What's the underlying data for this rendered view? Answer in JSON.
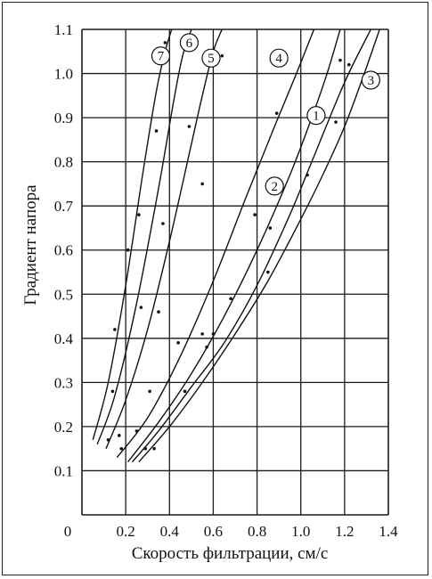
{
  "chart_data": {
    "type": "scatter",
    "xlabel": "Скорость фильтрации, см/с",
    "ylabel": "Градиент напора",
    "xlim": [
      0,
      1.4
    ],
    "ylim": [
      0,
      1.1
    ],
    "x_ticks": [
      "0",
      "0.2",
      "0.4",
      "0.6",
      "0.8",
      "1.0",
      "1.2",
      "1.4"
    ],
    "y_ticks": [
      "0.1",
      "0.2",
      "0.3",
      "0.4",
      "0.5",
      "0.6",
      "0.7",
      "0.8",
      "0.9",
      "1.0",
      "1.1"
    ],
    "grid": true,
    "curves": [
      {
        "name": "1",
        "x": [
          0.23,
          0.35,
          0.5,
          0.65,
          0.8,
          0.95,
          1.05,
          1.2,
          1.32
        ],
        "y": [
          0.12,
          0.19,
          0.29,
          0.39,
          0.52,
          0.68,
          0.8,
          0.98,
          1.1
        ]
      },
      {
        "name": "2",
        "x": [
          0.21,
          0.35,
          0.5,
          0.65,
          0.8,
          0.95,
          1.05,
          1.12,
          1.18
        ],
        "y": [
          0.12,
          0.21,
          0.32,
          0.45,
          0.6,
          0.77,
          0.9,
          1.0,
          1.1
        ]
      },
      {
        "name": "3",
        "x": [
          0.26,
          0.4,
          0.55,
          0.7,
          0.85,
          1.0,
          1.1,
          1.2,
          1.29,
          1.36
        ],
        "y": [
          0.12,
          0.2,
          0.3,
          0.41,
          0.53,
          0.67,
          0.77,
          0.88,
          1.0,
          1.1
        ]
      },
      {
        "name": "4",
        "x": [
          0.16,
          0.3,
          0.45,
          0.6,
          0.75,
          0.88,
          0.98,
          1.06
        ],
        "y": [
          0.13,
          0.22,
          0.36,
          0.53,
          0.72,
          0.88,
          1.0,
          1.1
        ]
      },
      {
        "name": "5",
        "x": [
          0.11,
          0.2,
          0.3,
          0.4,
          0.5,
          0.55,
          0.6,
          0.64
        ],
        "y": [
          0.15,
          0.26,
          0.42,
          0.62,
          0.84,
          0.95,
          1.05,
          1.1
        ]
      },
      {
        "name": "6",
        "x": [
          0.07,
          0.15,
          0.25,
          0.35,
          0.42,
          0.46,
          0.5
        ],
        "y": [
          0.16,
          0.27,
          0.48,
          0.74,
          0.94,
          1.04,
          1.1
        ]
      },
      {
        "name": "7",
        "x": [
          0.05,
          0.12,
          0.2,
          0.28,
          0.34,
          0.38,
          0.41
        ],
        "y": [
          0.17,
          0.3,
          0.52,
          0.78,
          0.96,
          1.05,
          1.1
        ]
      }
    ],
    "points": [
      {
        "x": 0.12,
        "y": 0.17
      },
      {
        "x": 0.14,
        "y": 0.28
      },
      {
        "x": 0.15,
        "y": 0.42
      },
      {
        "x": 0.17,
        "y": 0.18
      },
      {
        "x": 0.18,
        "y": 0.15
      },
      {
        "x": 0.21,
        "y": 0.6
      },
      {
        "x": 0.25,
        "y": 0.19
      },
      {
        "x": 0.26,
        "y": 0.68
      },
      {
        "x": 0.27,
        "y": 0.47
      },
      {
        "x": 0.29,
        "y": 0.15
      },
      {
        "x": 0.31,
        "y": 0.28
      },
      {
        "x": 0.33,
        "y": 0.15
      },
      {
        "x": 0.34,
        "y": 0.87
      },
      {
        "x": 0.35,
        "y": 0.46
      },
      {
        "x": 0.37,
        "y": 0.66
      },
      {
        "x": 0.38,
        "y": 1.07
      },
      {
        "x": 0.44,
        "y": 0.39
      },
      {
        "x": 0.47,
        "y": 0.28
      },
      {
        "x": 0.49,
        "y": 0.88
      },
      {
        "x": 0.55,
        "y": 0.75
      },
      {
        "x": 0.55,
        "y": 0.41
      },
      {
        "x": 0.57,
        "y": 0.38
      },
      {
        "x": 0.6,
        "y": 0.41
      },
      {
        "x": 0.64,
        "y": 1.04
      },
      {
        "x": 0.68,
        "y": 0.49
      },
      {
        "x": 0.79,
        "y": 0.68
      },
      {
        "x": 0.85,
        "y": 0.55
      },
      {
        "x": 0.86,
        "y": 0.65
      },
      {
        "x": 0.89,
        "y": 0.91
      },
      {
        "x": 1.03,
        "y": 0.77
      },
      {
        "x": 1.16,
        "y": 0.89
      },
      {
        "x": 1.18,
        "y": 1.03
      },
      {
        "x": 1.22,
        "y": 1.02
      }
    ],
    "curve_labels": [
      {
        "text": "7",
        "x": 0.36,
        "y": 1.04
      },
      {
        "text": "6",
        "x": 0.49,
        "y": 1.07
      },
      {
        "text": "5",
        "x": 0.59,
        "y": 1.035
      },
      {
        "text": "4",
        "x": 0.9,
        "y": 1.035
      },
      {
        "text": "1",
        "x": 1.07,
        "y": 0.905
      },
      {
        "text": "2",
        "x": 0.88,
        "y": 0.745
      },
      {
        "text": "3",
        "x": 1.32,
        "y": 0.985
      }
    ]
  }
}
